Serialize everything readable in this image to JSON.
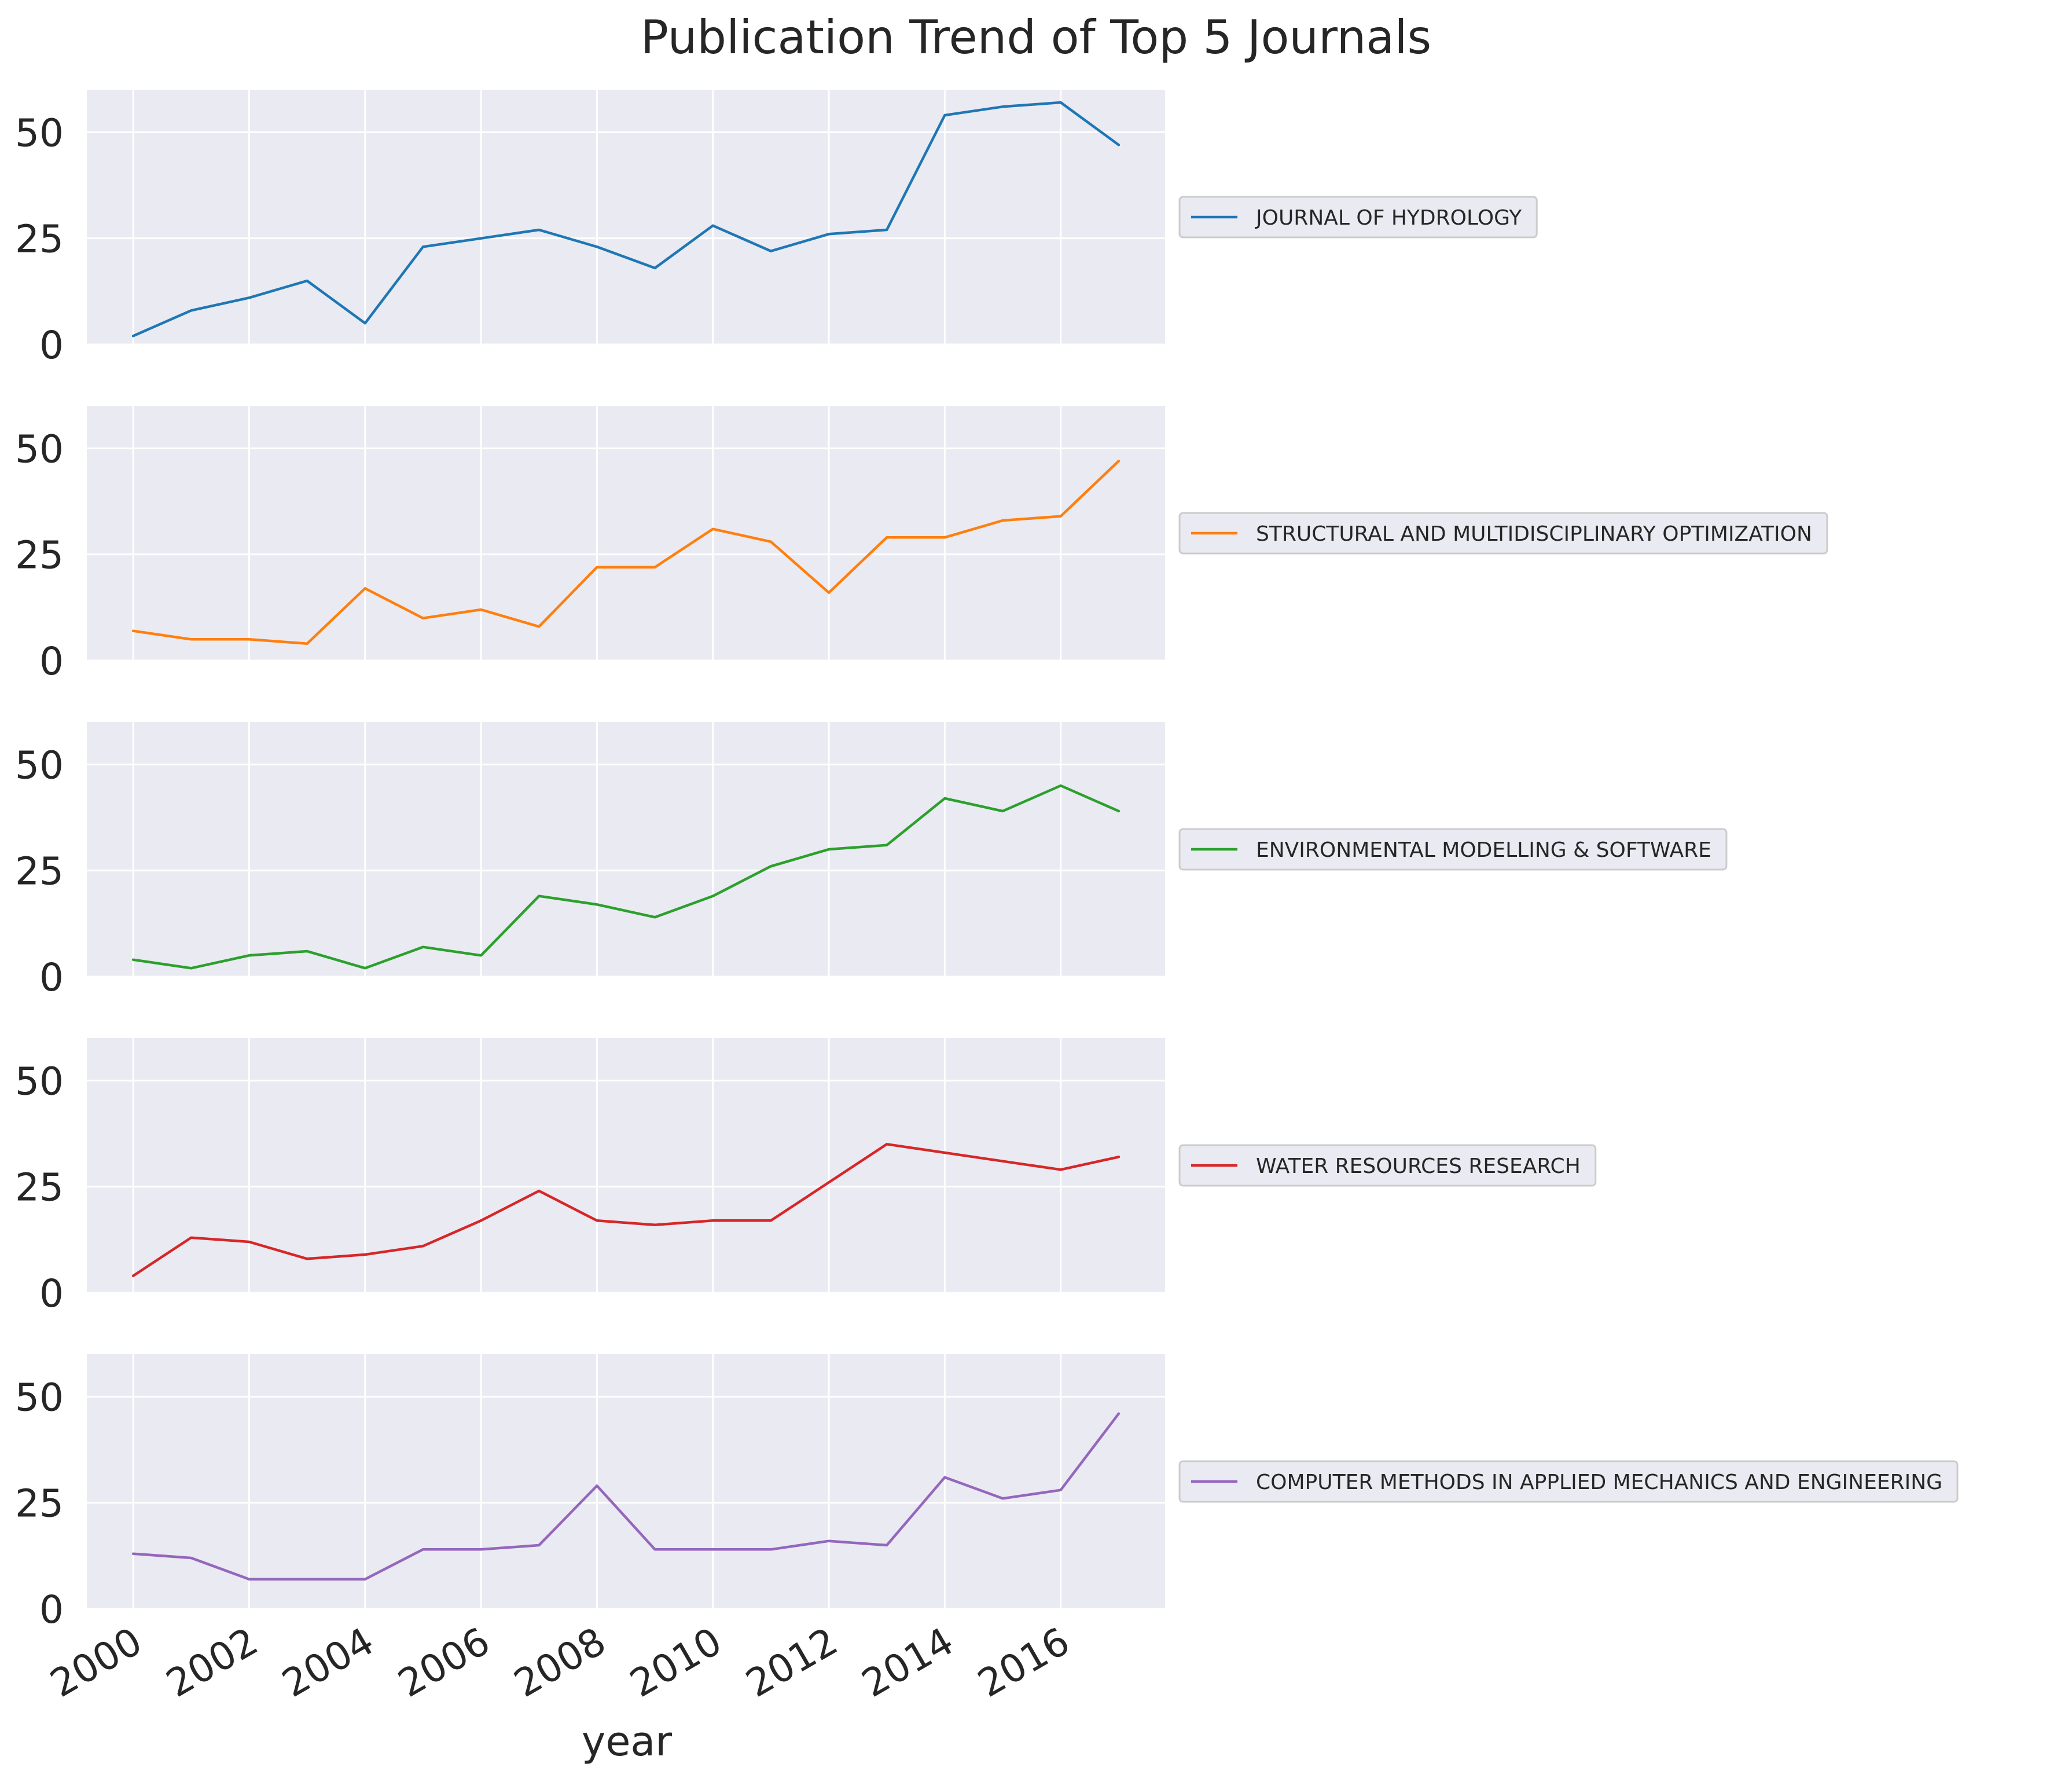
{
  "chart_data": {
    "type": "line",
    "title": "Publication Trend of Top 5 Journals",
    "xlabel": "year",
    "ylabel": "",
    "x": [
      2000,
      2001,
      2002,
      2003,
      2004,
      2005,
      2006,
      2007,
      2008,
      2009,
      2010,
      2011,
      2012,
      2013,
      2014,
      2015,
      2016,
      2017
    ],
    "xlim": [
      1999.2,
      2017.8
    ],
    "ylim": [
      0,
      60
    ],
    "xticks": [
      2000,
      2002,
      2004,
      2006,
      2008,
      2010,
      2012,
      2014,
      2016
    ],
    "xtick_labels": [
      "2000",
      "2002",
      "2004",
      "2006",
      "2008",
      "2010",
      "2012",
      "2014",
      "2016"
    ],
    "yticks": [
      0,
      25,
      50
    ],
    "ytick_labels": [
      "0",
      "25",
      "50"
    ],
    "grid": true,
    "legend_placement": "right",
    "background": "#eaeaf2",
    "series": [
      {
        "name": "JOURNAL OF HYDROLOGY",
        "color": "#1f77b4",
        "values": [
          2,
          8,
          11,
          15,
          5,
          23,
          25,
          27,
          23,
          18,
          28,
          22,
          26,
          27,
          54,
          56,
          57,
          47
        ]
      },
      {
        "name": "STRUCTURAL AND MULTIDISCIPLINARY OPTIMIZATION",
        "color": "#ff7f0e",
        "values": [
          7,
          5,
          5,
          4,
          17,
          10,
          12,
          8,
          22,
          22,
          31,
          28,
          16,
          29,
          29,
          33,
          34,
          47
        ]
      },
      {
        "name": "ENVIRONMENTAL MODELLING & SOFTWARE",
        "color": "#2ca02c",
        "values": [
          4,
          2,
          5,
          6,
          2,
          7,
          5,
          19,
          17,
          14,
          19,
          26,
          30,
          31,
          42,
          39,
          45,
          39
        ]
      },
      {
        "name": "WATER RESOURCES RESEARCH",
        "color": "#d62728",
        "values": [
          4,
          13,
          12,
          8,
          9,
          11,
          17,
          24,
          17,
          16,
          17,
          17,
          26,
          35,
          33,
          31,
          29,
          32
        ]
      },
      {
        "name": "COMPUTER METHODS IN APPLIED MECHANICS AND ENGINEERING",
        "color": "#9467bd",
        "values": [
          13,
          12,
          7,
          7,
          7,
          14,
          14,
          15,
          29,
          14,
          14,
          14,
          16,
          15,
          31,
          26,
          28,
          46
        ]
      }
    ]
  }
}
